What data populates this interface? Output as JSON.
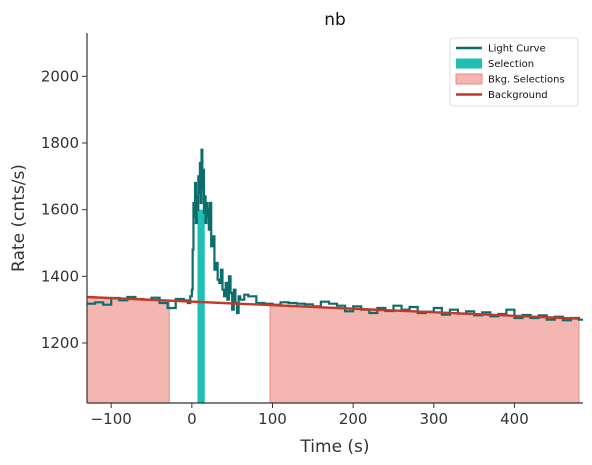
{
  "chart_data": {
    "type": "line",
    "title": "nb",
    "xlabel": "Time (s)",
    "ylabel": "Rate (cnts/s)",
    "xlim": [
      -130,
      485
    ],
    "ylim": [
      1020,
      2130
    ],
    "xticks": [
      -100,
      0,
      100,
      200,
      300,
      400
    ],
    "xtick_labels": [
      "−100",
      "0",
      "100",
      "200",
      "300",
      "400"
    ],
    "yticks": [
      1200,
      1400,
      1600,
      1800,
      2000
    ],
    "ytick_labels": [
      "1200",
      "1400",
      "1600",
      "1800",
      "2000"
    ],
    "grid": false,
    "legend_position": "top-right",
    "legend": [
      {
        "label": "Light Curve",
        "kind": "line",
        "color": "#0b6e6a"
      },
      {
        "label": "Selection",
        "kind": "patch",
        "color": "#1fbfb3"
      },
      {
        "label": "Bkg. Selections",
        "kind": "patch",
        "color": "#f4b6b0"
      },
      {
        "label": "Background",
        "kind": "line",
        "color": "#c0392b"
      }
    ],
    "colors": {
      "light_curve": "#0b6e6a",
      "selection": "#1fbfb3",
      "bkg_fill": "#f4b6b0",
      "bkg_edge": "#ec8a82",
      "background": "#c0392b"
    },
    "selection": {
      "x": [
        7,
        16
      ],
      "y_top": 1600
    },
    "bkg_selections": [
      {
        "x": [
          -130,
          -28
        ]
      },
      {
        "x": [
          97,
          480
        ]
      }
    ],
    "background_line": {
      "x": [
        -130,
        480
      ],
      "y": [
        1338,
        1273
      ]
    },
    "light_curve": {
      "x": [
        -130,
        -120,
        -110,
        -100,
        -90,
        -80,
        -70,
        -60,
        -50,
        -40,
        -30,
        -20,
        -10,
        -5,
        -2,
        0,
        1,
        2,
        3,
        4,
        5,
        6,
        7,
        8,
        9,
        10,
        11,
        12,
        13,
        14,
        15,
        16,
        17,
        18,
        19,
        20,
        21,
        22,
        24,
        26,
        28,
        30,
        32,
        34,
        36,
        38,
        40,
        42,
        44,
        46,
        48,
        50,
        52,
        54,
        56,
        58,
        60,
        65,
        70,
        80,
        90,
        100,
        110,
        120,
        130,
        140,
        150,
        160,
        170,
        180,
        190,
        200,
        210,
        220,
        230,
        240,
        250,
        260,
        270,
        280,
        290,
        300,
        310,
        320,
        330,
        340,
        350,
        360,
        370,
        380,
        390,
        400,
        410,
        420,
        430,
        440,
        450,
        460,
        470,
        480
      ],
      "y": [
        1318,
        1322,
        1315,
        1335,
        1328,
        1338,
        1332,
        1330,
        1336,
        1320,
        1305,
        1332,
        1328,
        1320,
        1340,
        1360,
        1480,
        1620,
        1580,
        1680,
        1560,
        1640,
        1600,
        1700,
        1650,
        1740,
        1620,
        1780,
        1660,
        1720,
        1590,
        1640,
        1560,
        1620,
        1580,
        1600,
        1540,
        1620,
        1490,
        1520,
        1420,
        1440,
        1390,
        1380,
        1420,
        1360,
        1340,
        1380,
        1330,
        1400,
        1350,
        1300,
        1360,
        1320,
        1290,
        1340,
        1330,
        1345,
        1340,
        1320,
        1318,
        1315,
        1322,
        1320,
        1318,
        1316,
        1310,
        1324,
        1318,
        1312,
        1295,
        1310,
        1300,
        1290,
        1305,
        1296,
        1312,
        1300,
        1308,
        1290,
        1294,
        1305,
        1285,
        1300,
        1288,
        1295,
        1283,
        1292,
        1280,
        1287,
        1300,
        1275,
        1284,
        1275,
        1283,
        1270,
        1279,
        1268,
        1275,
        1270
      ]
    }
  }
}
